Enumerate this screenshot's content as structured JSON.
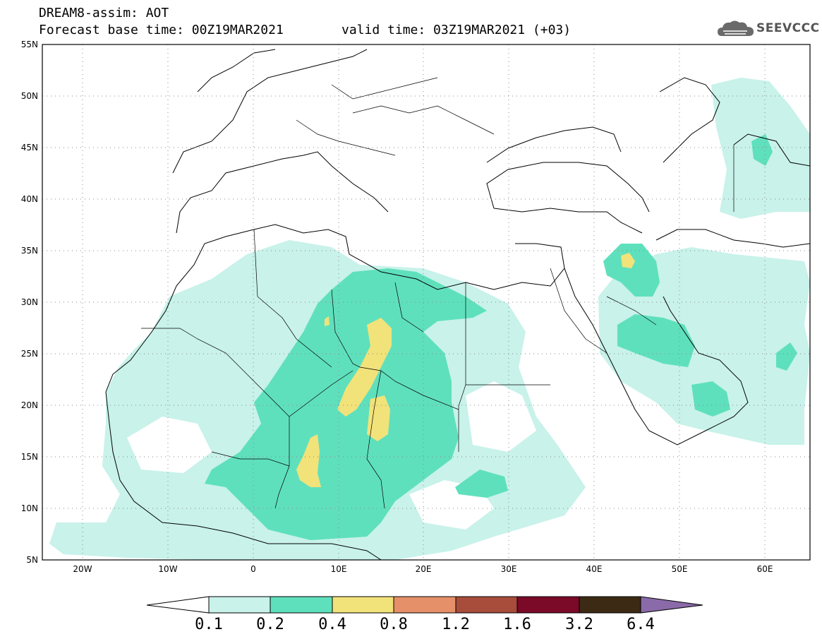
{
  "header": {
    "line1": "DREAM8-assim: AOT",
    "line2": "Forecast base time: 00Z19MAR2021",
    "valid": "valid time: 03Z19MAR2021 (+03)"
  },
  "logo": {
    "text": "SEEVCCC",
    "icon": "cloud-icon"
  },
  "map": {
    "lon_range": [
      -25,
      65
    ],
    "lat_range": [
      5,
      55
    ],
    "grid": "dotted",
    "lat_labels": [
      "55N",
      "50N",
      "45N",
      "40N",
      "35N",
      "30N",
      "25N",
      "20N",
      "15N",
      "10N",
      "5N"
    ],
    "lon_labels": [
      "20W",
      "10W",
      "0",
      "10E",
      "20E",
      "30E",
      "40E",
      "50E",
      "60E"
    ]
  },
  "colorbar": {
    "labels": [
      "0.1",
      "0.2",
      "0.4",
      "0.8",
      "1.2",
      "1.6",
      "3.2",
      "6.4"
    ],
    "colors": [
      "#c8f2ea",
      "#5fe0bd",
      "#f2e27a",
      "#e59068",
      "#a84c3c",
      "#7a0a28",
      "#3c2a14",
      "#8a6aa8"
    ]
  }
}
